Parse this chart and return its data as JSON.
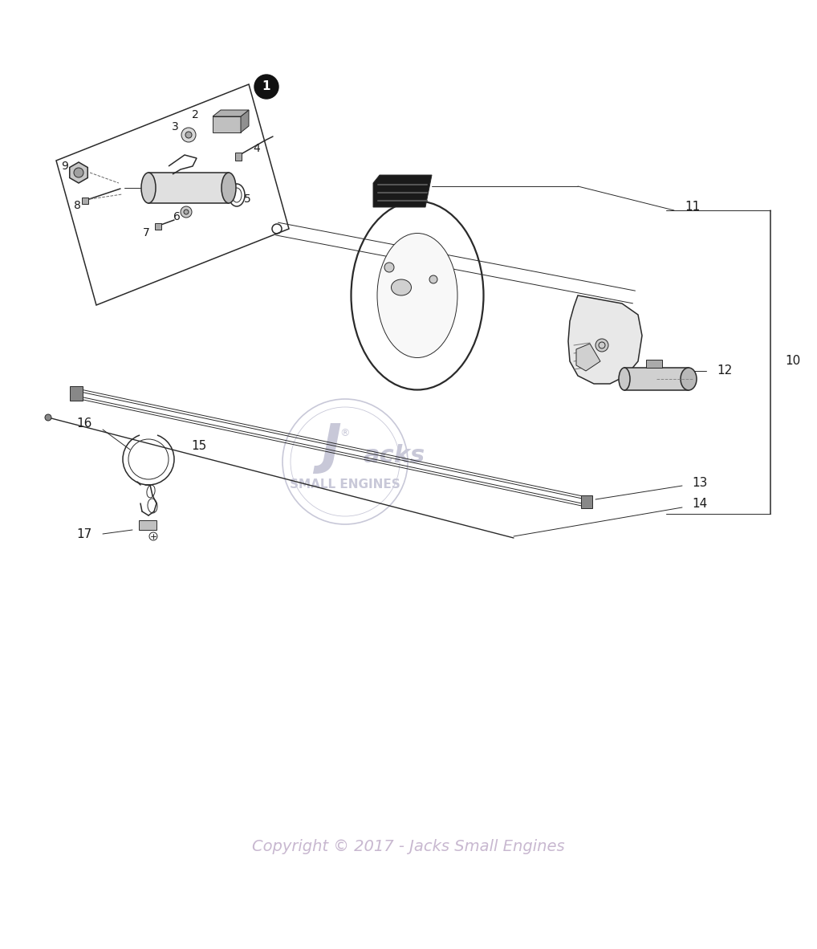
{
  "bg_color": "#ffffff",
  "copyright_text": "Copyright © 2017 - Jacks Small Engines",
  "copyright_color": "#c8b8d0",
  "watermark_text_1": "Jacks",
  "watermark_text_2": "SMALL ENGINES",
  "watermark_color": "#c8c8d8",
  "line_color": "#2a2a2a",
  "label_color": "#1a1a1a",
  "figure_width": 10.18,
  "figure_height": 11.82
}
